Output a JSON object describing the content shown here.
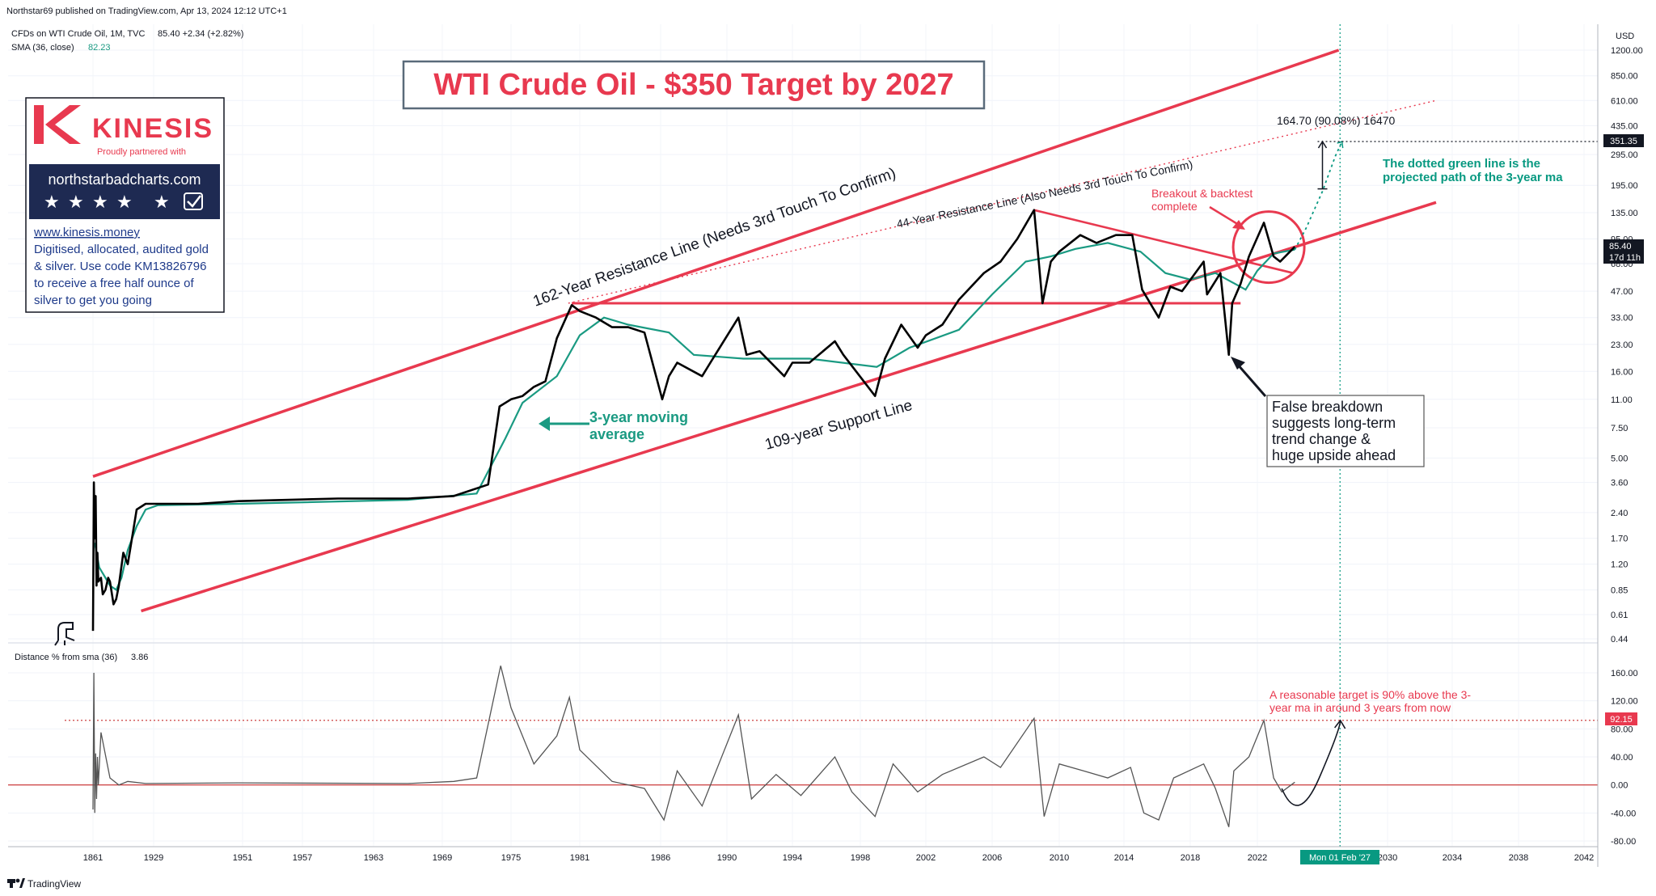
{
  "header": {
    "publisher": "Northstar69 published on TradingView.com, Apr 13, 2024 12:12 UTC+1",
    "symbol_line": "CFDs on WTI Crude Oil, 1M, TVC",
    "price_info": "85.40  +2.34 (+2.82%)",
    "sma_label": "SMA (36, close)",
    "sma_value": "82.23"
  },
  "title": "WTI Crude Oil - $350 Target by 2027",
  "sponsor": {
    "brand": "KINESIS",
    "tagline": "Proudly partnered with",
    "site_banner": "northstarbadcharts.com",
    "link": "www.kinesis.money",
    "body_lines": [
      "Digitised, allocated, audited gold",
      "& silver. Use code KM13826796",
      "to receive a free half ounce of",
      "silver to get you going"
    ]
  },
  "annotations": {
    "resistance_162": "162-Year Resistance Line (Needs 3rd Touch To Confirm)",
    "resistance_44": "44-Year Resistance Line (Also Needs 3rd Touch To Confirm)",
    "support_109": "109-year Support Line",
    "ma_label": [
      "3-year moving",
      "average"
    ],
    "breakout": [
      "Breakout & backtest",
      "complete"
    ],
    "false_breakdown": [
      "False breakdown",
      "suggests long-term",
      "trend change &",
      "huge upside ahead"
    ],
    "projection_note": [
      "The dotted green line is the",
      "projected path of the 3-year ma"
    ],
    "measure": "164.70 (90.08%) 16470",
    "target_note": [
      "A reasonable target is 90% above the 3-",
      "year ma in around 3 years from now"
    ]
  },
  "price_scale": {
    "currency": "USD",
    "ticks": [
      "1200.00",
      "850.00",
      "610.00",
      "435.00",
      "295.00",
      "195.00",
      "135.00",
      "95.00",
      "68.00",
      "47.00",
      "33.00",
      "23.00",
      "16.00",
      "11.00",
      "7.50",
      "5.00",
      "3.60",
      "2.40",
      "1.70",
      "1.20",
      "0.85",
      "0.61",
      "0.44"
    ],
    "target_label": "351.35",
    "last_price": "85.40",
    "countdown": "17d 11h"
  },
  "indicator": {
    "label": "Distance % from sma (36)",
    "value": "3.86",
    "ticks": [
      "160.00",
      "120.00",
      "80.00",
      "40.00",
      "0.00",
      "-40.00",
      "-80.00"
    ],
    "level_label": "92.15"
  },
  "time_axis": {
    "ticks": [
      "1861",
      "1929",
      "1951",
      "1957",
      "1963",
      "1969",
      "1975",
      "1981",
      "1986",
      "1990",
      "1994",
      "1998",
      "2002",
      "2006",
      "2010",
      "2014",
      "2018",
      "2022",
      "2030",
      "2034",
      "2038",
      "2042"
    ],
    "highlight": "Mon 01 Feb '27"
  },
  "footer": {
    "brand": "TradingView"
  },
  "colors": {
    "price": "#000000",
    "sma": "#1a9a82",
    "trendline": "#e8394f",
    "projection": "#089981",
    "indicator": "#555555",
    "zero_line": "#c62828",
    "text_red": "#e8394f"
  },
  "chart_data": [
    {
      "type": "line",
      "title": "WTI Crude Oil - $350 Target by 2027",
      "yscale": "log",
      "ylim": [
        0.44,
        1200
      ],
      "series": [
        {
          "name": "CFDs on WTI Crude Oil, 1M, TVC",
          "x": [
            1861,
            1862,
            1863,
            1864,
            1865,
            1866,
            1867,
            1870,
            1872,
            1875,
            1878,
            1880,
            1884,
            1887,
            1890,
            1895,
            1900,
            1910,
            1920,
            1926,
            1930,
            1940,
            1950,
            1960,
            1966,
            1970,
            1973,
            1974.0,
            1975,
            1976,
            1977,
            1978,
            1979,
            1980.3,
            1981,
            1982,
            1983,
            1984,
            1985,
            1986.1,
            1986.5,
            1987,
            1988.5,
            1989,
            1990.7,
            1991.2,
            1992,
            1993.5,
            1994,
            1995,
            1996.5,
            1997,
            1998.9,
            1999.5,
            2000.5,
            2001.5,
            2002,
            2003,
            2004,
            2005.5,
            2006.5,
            2007.5,
            2008.5,
            2009.0,
            2009.5,
            2010,
            2011.3,
            2012.3,
            2013.5,
            2014.5,
            2015.1,
            2016.1,
            2016.8,
            2017.5,
            2018.8,
            2019.0,
            2019.8,
            2020.3,
            2020.5,
            2021.0,
            2021.5,
            2022.4,
            2023.0,
            2023.4,
            2024.0,
            2024.3
          ],
          "y": [
            0.49,
            3.6,
            1.7,
            3.0,
            0.9,
            1.4,
            0.95,
            1.0,
            0.8,
            0.85,
            1.0,
            0.95,
            0.7,
            0.75,
            0.9,
            1.4,
            1.2,
            2.5,
            2.7,
            2.7,
            2.7,
            2.7,
            2.8,
            2.9,
            2.9,
            3.0,
            3.5,
            10,
            11,
            11.5,
            13,
            14,
            25,
            39,
            36,
            33,
            29,
            29,
            27,
            11,
            15,
            18,
            15,
            18,
            33,
            20,
            21,
            15,
            18,
            18,
            24,
            20,
            11.5,
            19,
            30,
            22,
            26,
            30,
            42,
            60,
            70,
            95,
            140,
            40,
            70,
            80,
            100,
            90,
            100,
            100,
            48,
            33,
            50,
            47,
            70,
            45,
            60,
            20,
            40,
            52,
            75,
            118,
            75,
            70,
            80,
            85.4
          ]
        },
        {
          "name": "SMA (36, close)",
          "x": [
            1863,
            1868,
            1875,
            1880,
            1887,
            1893,
            1900,
            1910,
            1920,
            1930,
            1950,
            1966,
            1972,
            1974.5,
            1976,
            1979,
            1981,
            1982.5,
            1984,
            1986.5,
            1988,
            1991,
            1995,
            1999,
            2001,
            2004,
            2006,
            2008,
            2009.5,
            2011,
            2013,
            2015,
            2016.5,
            2018,
            2019.5,
            2021.3,
            2022,
            2023,
            2024.3
          ],
          "y": [
            1.6,
            1.15,
            1.0,
            0.9,
            0.85,
            1.0,
            1.45,
            2.0,
            2.5,
            2.65,
            2.7,
            2.85,
            3.1,
            6.5,
            10.5,
            15,
            26,
            33,
            30,
            27,
            20,
            19,
            19,
            17,
            22,
            28,
            45,
            70,
            75,
            83,
            90,
            80,
            60,
            55,
            60,
            48,
            62,
            78,
            82.23
          ]
        }
      ],
      "projection": {
        "name": "projected path of the 3-year ma",
        "x": [
          2024.3,
          2025,
          2026,
          2026.8,
          2027.2
        ],
        "y": [
          82.23,
          110,
          180,
          290,
          351.35
        ]
      },
      "trendlines": [
        {
          "name": "162-Year Resistance Line",
          "x": [
            1861,
            2027
          ],
          "y": [
            3.9,
            1200
          ]
        },
        {
          "name": "109-year Support Line",
          "x": [
            1915,
            2033
          ],
          "y": [
            0.64,
            155
          ]
        },
        {
          "name": "44-Year Resistance Line",
          "x": [
            1980,
            2033
          ],
          "y": [
            40,
            610
          ]
        }
      ],
      "markers": {
        "target": 351.35,
        "measure_from": 186,
        "last": 85.4,
        "horizontal_support": 40
      },
      "time_ticks": [
        1861,
        1929,
        1951,
        1957,
        1963,
        1969,
        1975,
        1981,
        1986,
        1990,
        1994,
        1998,
        2002,
        2006,
        2010,
        2014,
        2018,
        2022,
        2030,
        2034,
        2038,
        2042
      ]
    },
    {
      "type": "line",
      "ylim": [
        -80,
        170
      ],
      "series": [
        {
          "name": "Distance % from sma (36)",
          "x": [
            1861,
            1862,
            1863,
            1864,
            1865,
            1866,
            1867,
            1870,
            1880,
            1890,
            1900,
            1920,
            1950,
            1966,
            1970,
            1972,
            1974.1,
            1975,
            1977,
            1979,
            1980.1,
            1981,
            1983,
            1985,
            1986.2,
            1987,
            1988.5,
            1990.7,
            1991.5,
            1993,
            1994.5,
            1996.5,
            1997.5,
            1998.9,
            2000,
            2001.5,
            2003,
            2005.5,
            2006.5,
            2008.5,
            2009.1,
            2010,
            2011.5,
            2013,
            2014.4,
            2015.2,
            2016.1,
            2017,
            2018.8,
            2019.5,
            2020.3,
            2020.6,
            2021.5,
            2022.4,
            2023.0,
            2023.5,
            2024.3
          ],
          "y": [
            -35,
            160,
            -40,
            45,
            -20,
            40,
            0,
            75,
            10,
            0,
            5,
            2,
            3,
            2,
            5,
            10,
            170,
            110,
            30,
            70,
            125,
            50,
            5,
            -5,
            -50,
            20,
            -30,
            100,
            -20,
            15,
            -15,
            40,
            -10,
            -45,
            30,
            -10,
            15,
            40,
            25,
            95,
            -45,
            30,
            20,
            10,
            25,
            -40,
            -50,
            10,
            30,
            -5,
            -60,
            20,
            40,
            92.15,
            10,
            -10,
            3.86
          ]
        }
      ],
      "reference_lines": [
        0,
        92.15
      ],
      "projection": {
        "x": [
          2023.5,
          2024.5,
          2025.8,
          2027.1
        ],
        "y": [
          -5,
          -25,
          10,
          92
        ]
      }
    }
  ]
}
